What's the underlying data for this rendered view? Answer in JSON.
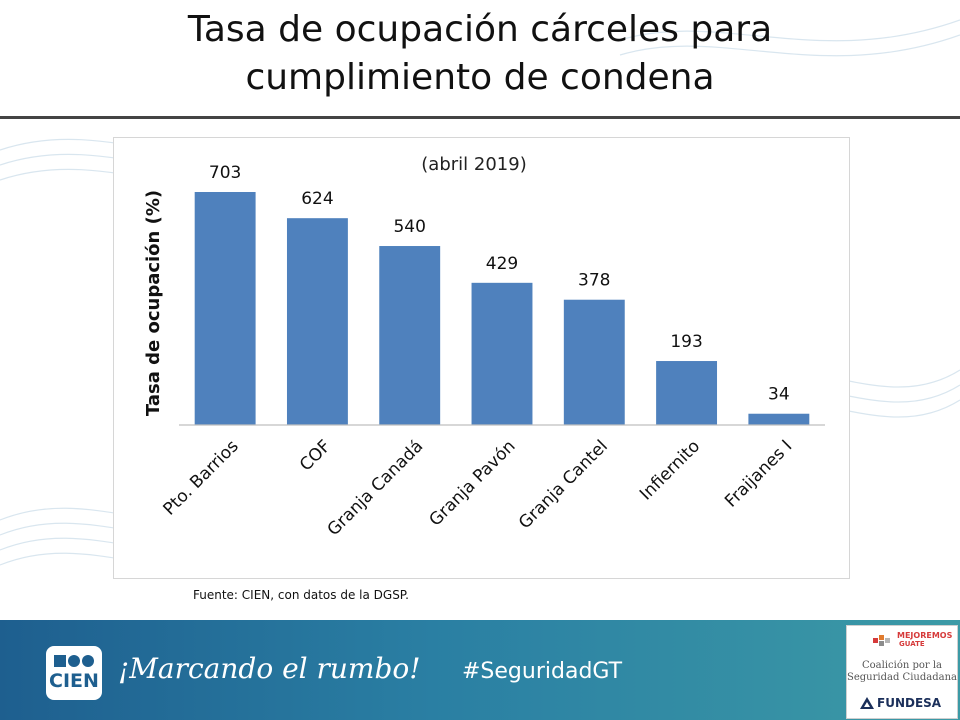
{
  "slide": {
    "title_line1": "Tasa de ocupación cárceles para",
    "title_line2": "cumplimiento de condena",
    "source": "Fuente: CIEN, con datos de la DGSP."
  },
  "chart_data": {
    "type": "bar",
    "title": "(abril 2019)",
    "ylabel": "Tasa de ocupación (%)",
    "xlabel": "",
    "categories": [
      "Pto. Barrios",
      "COF",
      "Granja Canadá",
      "Granja Pavón",
      "Granja Cantel",
      "Infiernito",
      "Fraijanes I"
    ],
    "values": [
      703,
      624,
      540,
      429,
      378,
      193,
      34
    ],
    "ylim": [
      0,
      703
    ],
    "grid": false,
    "legend": "none",
    "bar_color": "#4f81bd"
  },
  "footer": {
    "logo_text": "CIEN",
    "slogan": "¡Marcando el rumbo!",
    "hashtag": "#SeguridadGT",
    "partner_line1": "MEJOREMOS",
    "partner_line2": "GUATE",
    "coalition_line1": "Coalición por la",
    "coalition_line2": "Seguridad Ciudadana",
    "fundesa": "FUNDESA",
    "colors": {
      "band_start": "#1e5f8f",
      "band_end": "#3c9aa6",
      "accent_red": "#d63a3a"
    }
  }
}
